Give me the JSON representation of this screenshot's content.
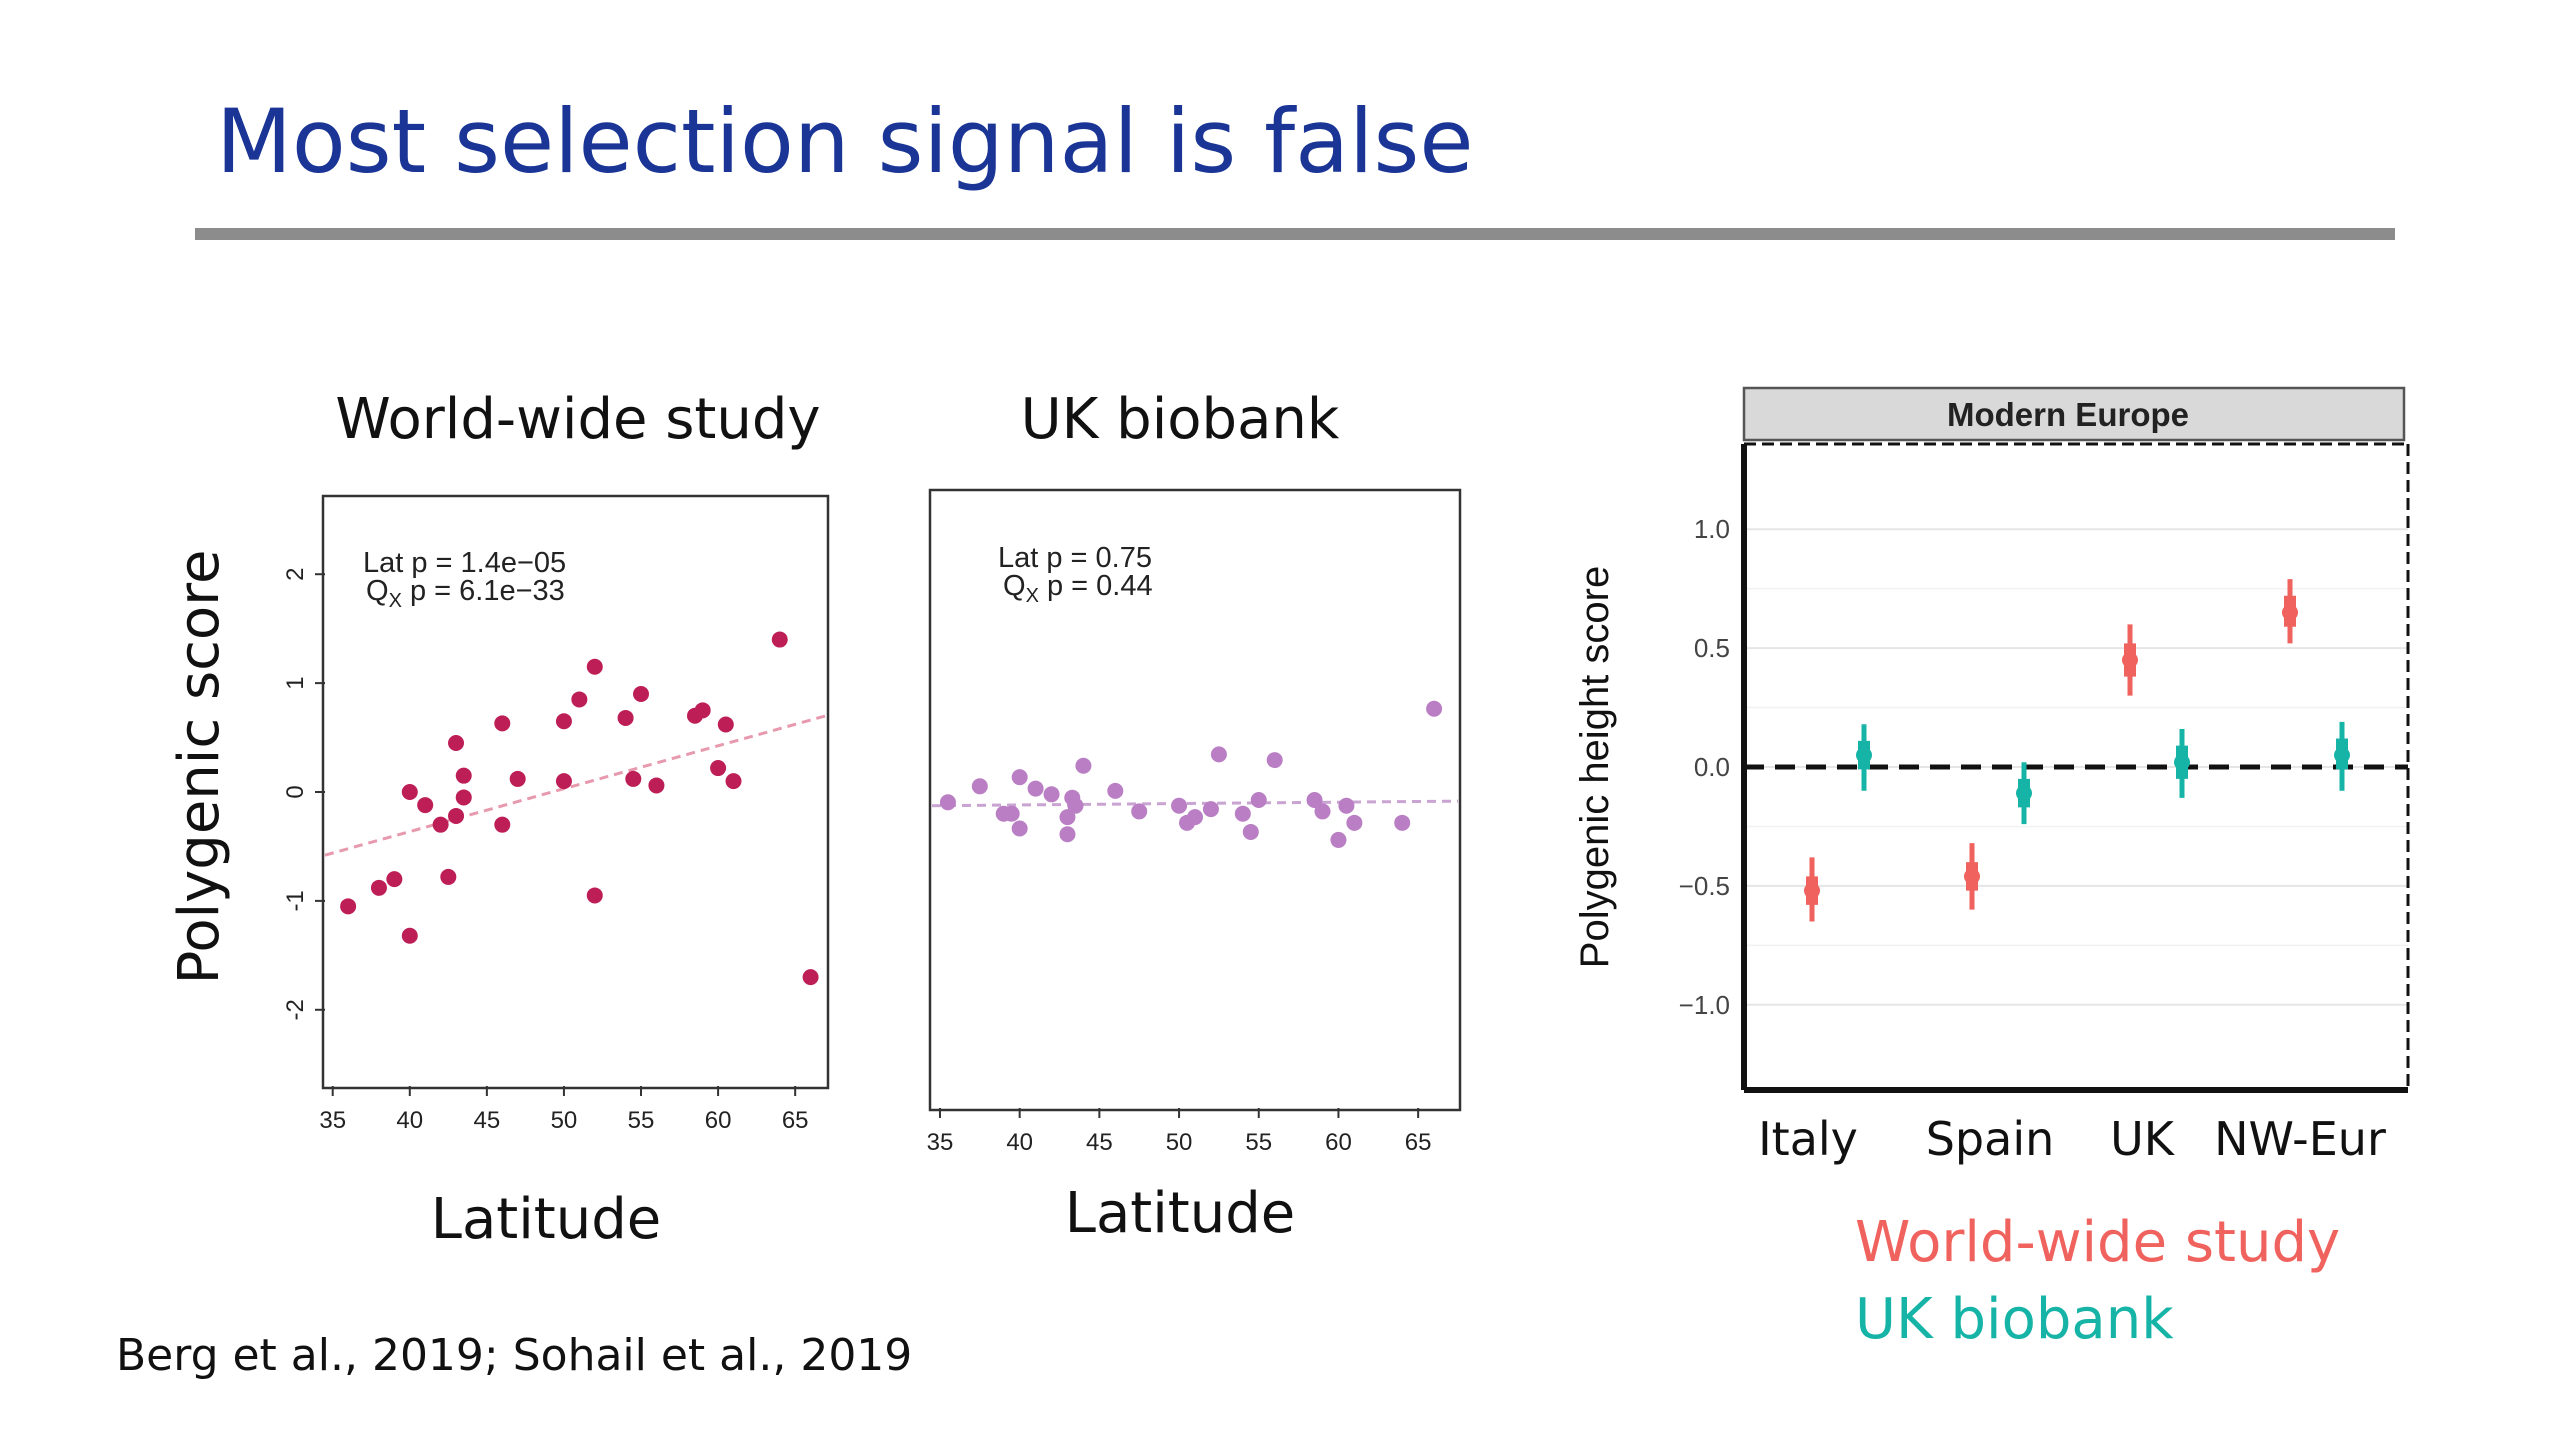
{
  "slide": {
    "title": "Most selection signal is false",
    "citation": "Berg et al., 2019; Sohail et al., 2019",
    "legend_worldwide": "World-wide study",
    "legend_ukbiobank": "UK biobank"
  },
  "colors": {
    "title": "#1a3596",
    "rule": "#8c8c8c",
    "worldwide_points": "#be1e56",
    "worldwide_trend": "#e79aae",
    "uk_points": "#b97ec3",
    "uk_trend": "#c9a4d2",
    "worldwide_legend": "#f0625d",
    "uk_legend": "#16b3a7",
    "strip_fill": "#d9d9d9"
  },
  "chart_data": [
    {
      "type": "scatter",
      "title": "World-wide study",
      "xlabel": "Latitude",
      "ylabel": "Polygenic score",
      "xlim": [
        34.5,
        67
      ],
      "ylim": [
        -2.7,
        2.7
      ],
      "xticks": [
        35,
        40,
        45,
        50,
        55,
        60,
        65
      ],
      "yticks": [
        -2,
        -1,
        0,
        1,
        2
      ],
      "annotation": [
        "Lat p = 1.4e−05",
        "Q",
        "X",
        " p = 6.1e−33"
      ],
      "trend": {
        "x": [
          34.5,
          67
        ],
        "y": [
          -0.58,
          0.7
        ]
      },
      "x": [
        36,
        38,
        39,
        40,
        40,
        41,
        42,
        42.5,
        43,
        43,
        43.5,
        43.5,
        46,
        46,
        47,
        50,
        50,
        51,
        52,
        52,
        54,
        54.5,
        55,
        56,
        58.5,
        59,
        60,
        60.5,
        61,
        64,
        66
      ],
      "y": [
        -1.05,
        -0.88,
        -0.8,
        -1.32,
        0.0,
        -0.12,
        -0.3,
        -0.78,
        -0.22,
        0.45,
        -0.05,
        0.15,
        0.63,
        -0.3,
        0.12,
        0.65,
        0.1,
        0.85,
        1.15,
        -0.95,
        0.68,
        0.12,
        0.9,
        0.06,
        0.7,
        0.75,
        0.22,
        0.62,
        0.1,
        1.4,
        -1.7
      ]
    },
    {
      "type": "scatter",
      "title": "UK biobank",
      "xlabel": "Latitude",
      "ylabel": "",
      "xlim": [
        34.5,
        67.5
      ],
      "ylim": [
        -2.7,
        2.7
      ],
      "xticks": [
        35,
        40,
        45,
        50,
        55,
        60,
        65
      ],
      "annotation": [
        "Lat p = 0.75",
        "Q",
        "X",
        " p = 0.44"
      ],
      "trend": {
        "x": [
          34.5,
          67.5
        ],
        "y": [
          -0.05,
          -0.01
        ]
      },
      "x": [
        35.5,
        37.5,
        39,
        39.5,
        40,
        40,
        41,
        42,
        43,
        43,
        43.3,
        43.5,
        44,
        46,
        47.5,
        50,
        50.5,
        51,
        52,
        52.5,
        54,
        54.5,
        55,
        56,
        58.5,
        59,
        60,
        60.5,
        61,
        64,
        66
      ],
      "y": [
        -0.02,
        0.12,
        -0.12,
        -0.12,
        0.2,
        -0.25,
        0.1,
        0.05,
        -0.15,
        -0.3,
        0.02,
        -0.05,
        0.3,
        0.08,
        -0.1,
        -0.05,
        -0.2,
        -0.15,
        -0.08,
        0.4,
        -0.12,
        -0.28,
        0.0,
        0.35,
        0.0,
        -0.1,
        -0.35,
        -0.05,
        -0.2,
        -0.2,
        0.8
      ]
    },
    {
      "type": "errorbar",
      "panel_title": "Modern Europe",
      "xlabel": "",
      "ylabel": "Polygenic height score",
      "ylim": [
        -1.35,
        1.35
      ],
      "yticks": [
        1.0,
        0.5,
        0.0,
        -0.5,
        -1.0
      ],
      "ytick_labels": [
        "1.0",
        "0.5",
        "0.0",
        "−0.5",
        "−1.0"
      ],
      "categories": [
        "Italy",
        "Spain",
        "UK",
        "NW-Eur"
      ],
      "reference_line": 0.0,
      "series": [
        {
          "name": "World-wide study",
          "values": [
            -0.52,
            -0.46,
            0.45,
            0.65
          ],
          "low": [
            -0.65,
            -0.6,
            0.3,
            0.52
          ],
          "high": [
            -0.38,
            -0.32,
            0.6,
            0.79
          ],
          "q1": [
            -0.58,
            -0.52,
            0.38,
            0.59
          ],
          "q3": [
            -0.46,
            -0.4,
            0.52,
            0.72
          ]
        },
        {
          "name": "UK biobank",
          "values": [
            0.05,
            -0.11,
            0.02,
            0.05
          ],
          "low": [
            -0.1,
            -0.24,
            -0.13,
            -0.1
          ],
          "high": [
            0.18,
            0.02,
            0.16,
            0.19
          ],
          "q1": [
            -0.01,
            -0.17,
            -0.05,
            -0.01
          ],
          "q3": [
            0.11,
            -0.05,
            0.09,
            0.12
          ]
        }
      ]
    }
  ]
}
